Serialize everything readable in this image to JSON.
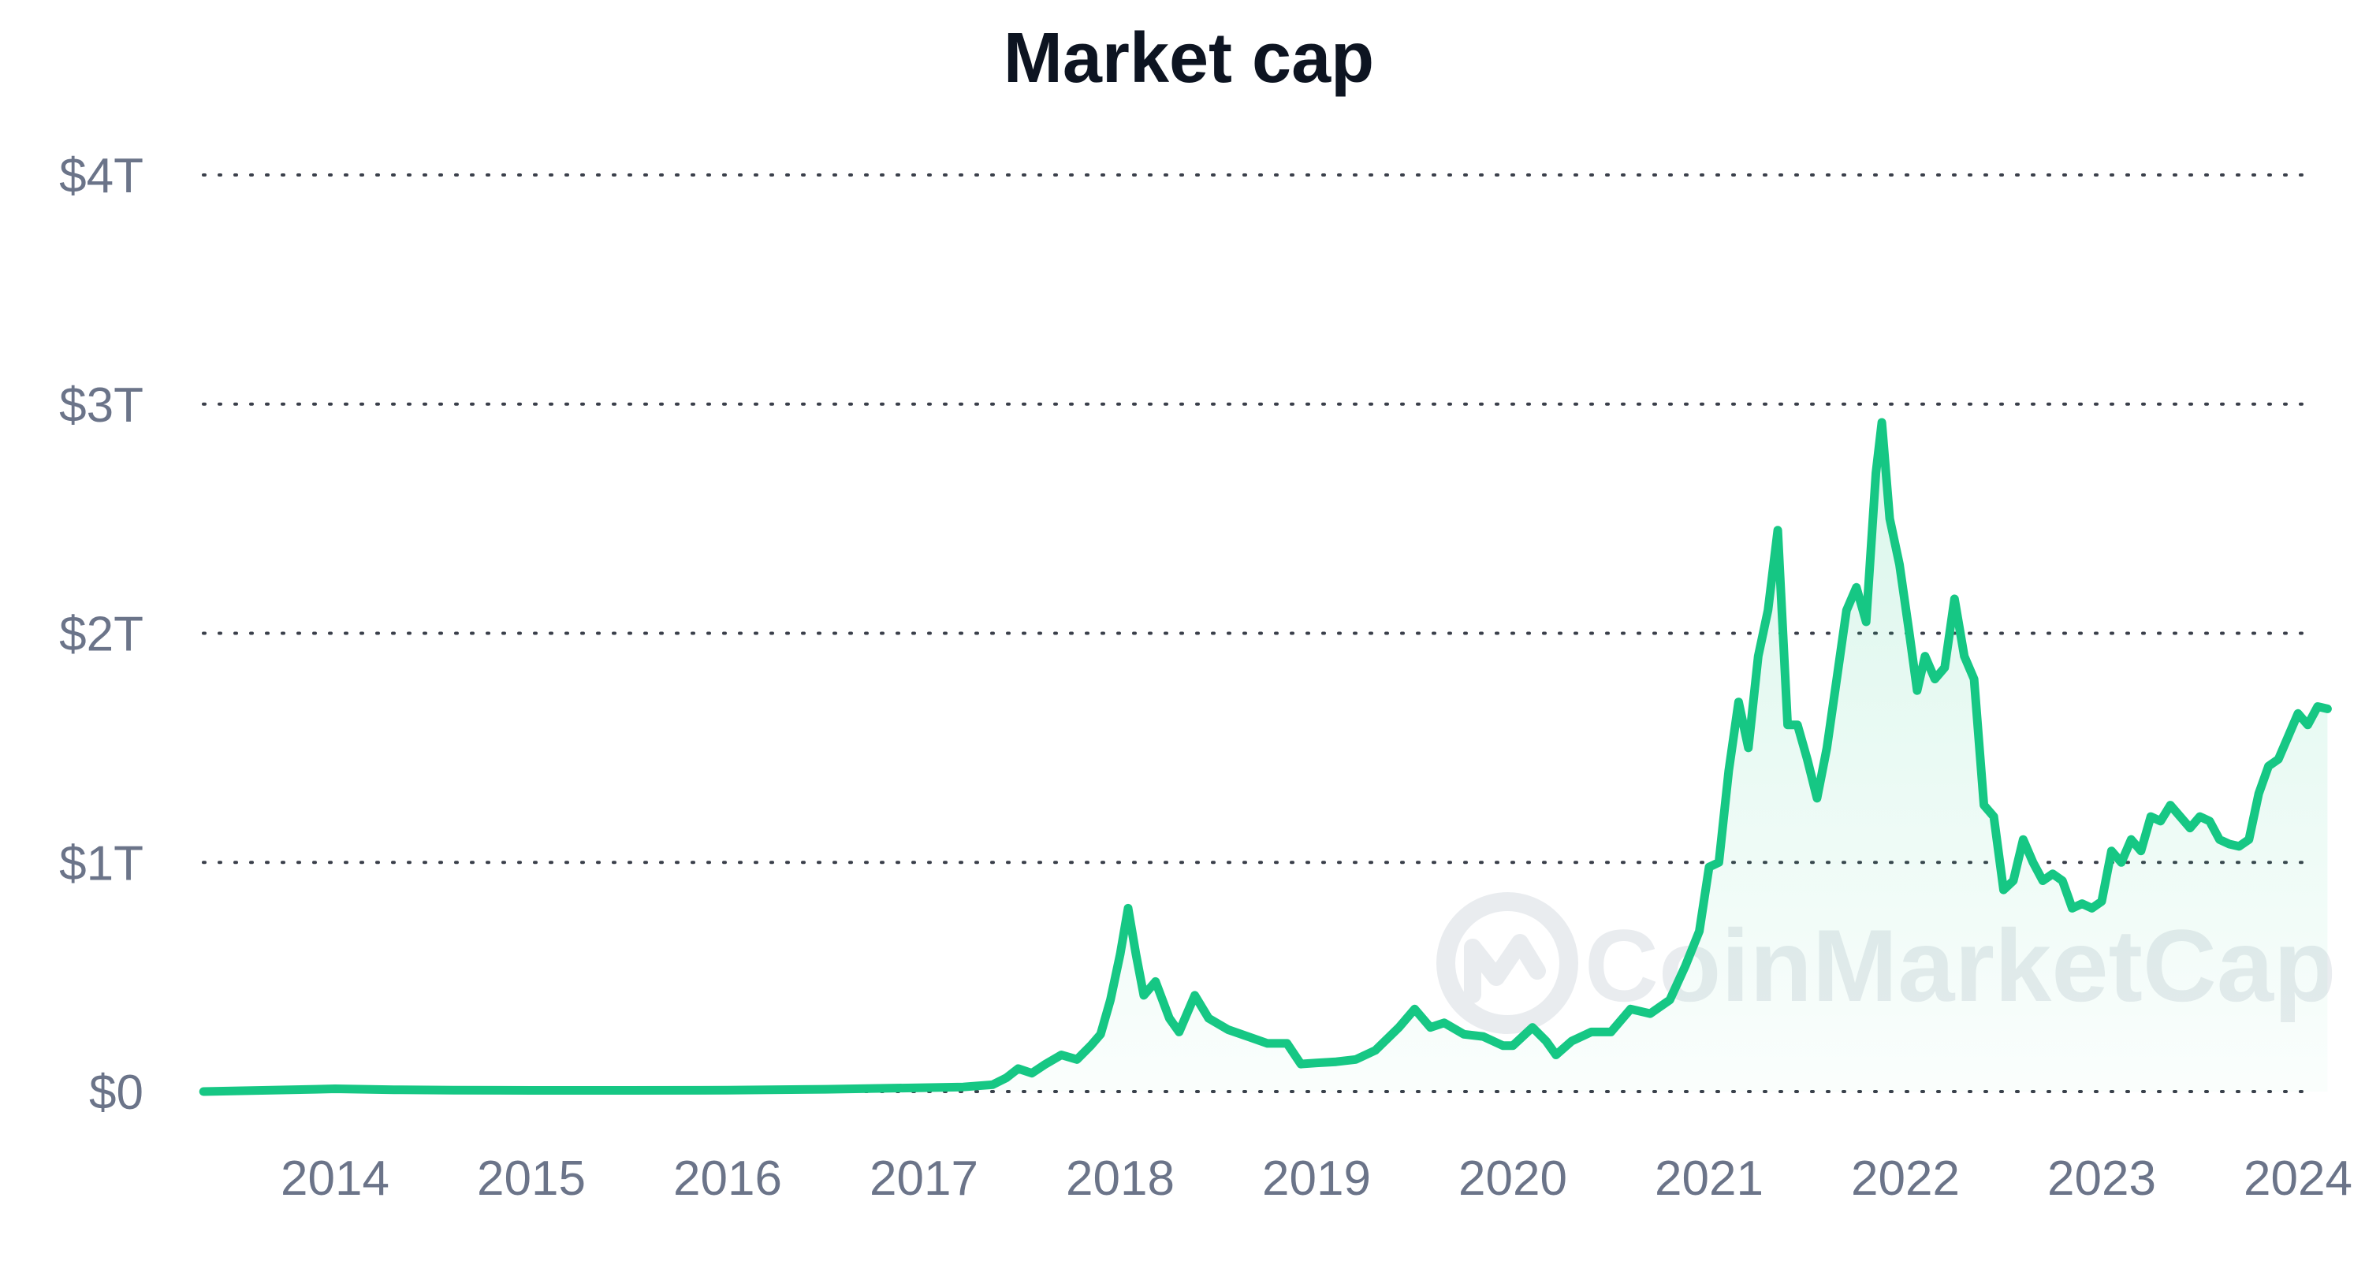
{
  "chart_data": {
    "type": "area",
    "title": "Market cap",
    "xlabel": "",
    "ylabel": "",
    "x_range": [
      2013.33,
      2024.15
    ],
    "ylim": [
      0,
      4
    ],
    "y_unit": "trillion USD",
    "y_ticks": [
      0,
      1,
      2,
      3,
      4
    ],
    "y_tick_labels": [
      "$0",
      "$1T",
      "$2T",
      "$3T",
      "$4T"
    ],
    "x_ticks": [
      2014,
      2015,
      2016,
      2017,
      2018,
      2019,
      2020,
      2021,
      2022,
      2023,
      2024
    ],
    "x_tick_labels": [
      "2014",
      "2015",
      "2016",
      "2017",
      "2018",
      "2019",
      "2020",
      "2021",
      "2022",
      "2023",
      "2024"
    ],
    "grid": "horizontal dotted",
    "line_color": "#16c784",
    "watermark": "CoinMarketCap",
    "series": [
      {
        "points": [
          [
            2013.33,
            0.0
          ],
          [
            2013.9,
            0.01
          ],
          [
            2014.0,
            0.012
          ],
          [
            2014.3,
            0.008
          ],
          [
            2014.6,
            0.006
          ],
          [
            2015.0,
            0.005
          ],
          [
            2015.5,
            0.005
          ],
          [
            2016.0,
            0.006
          ],
          [
            2016.5,
            0.01
          ],
          [
            2017.0,
            0.017
          ],
          [
            2017.2,
            0.02
          ],
          [
            2017.35,
            0.03
          ],
          [
            2017.42,
            0.06
          ],
          [
            2017.48,
            0.1
          ],
          [
            2017.55,
            0.08
          ],
          [
            2017.62,
            0.12
          ],
          [
            2017.7,
            0.16
          ],
          [
            2017.78,
            0.14
          ],
          [
            2017.85,
            0.2
          ],
          [
            2017.9,
            0.25
          ],
          [
            2017.95,
            0.4
          ],
          [
            2018.0,
            0.6
          ],
          [
            2018.04,
            0.8
          ],
          [
            2018.08,
            0.6
          ],
          [
            2018.12,
            0.42
          ],
          [
            2018.18,
            0.48
          ],
          [
            2018.25,
            0.32
          ],
          [
            2018.3,
            0.26
          ],
          [
            2018.38,
            0.42
          ],
          [
            2018.45,
            0.32
          ],
          [
            2018.55,
            0.27
          ],
          [
            2018.65,
            0.24
          ],
          [
            2018.75,
            0.21
          ],
          [
            2018.85,
            0.21
          ],
          [
            2018.92,
            0.12
          ],
          [
            2019.0,
            0.125
          ],
          [
            2019.1,
            0.13
          ],
          [
            2019.2,
            0.14
          ],
          [
            2019.3,
            0.18
          ],
          [
            2019.42,
            0.28
          ],
          [
            2019.5,
            0.36
          ],
          [
            2019.58,
            0.28
          ],
          [
            2019.65,
            0.3
          ],
          [
            2019.75,
            0.25
          ],
          [
            2019.85,
            0.24
          ],
          [
            2019.95,
            0.2
          ],
          [
            2020.0,
            0.2
          ],
          [
            2020.1,
            0.28
          ],
          [
            2020.17,
            0.22
          ],
          [
            2020.22,
            0.16
          ],
          [
            2020.3,
            0.22
          ],
          [
            2020.4,
            0.26
          ],
          [
            2020.5,
            0.26
          ],
          [
            2020.6,
            0.36
          ],
          [
            2020.7,
            0.34
          ],
          [
            2020.8,
            0.4
          ],
          [
            2020.88,
            0.55
          ],
          [
            2020.95,
            0.7
          ],
          [
            2021.0,
            0.98
          ],
          [
            2021.05,
            1.0
          ],
          [
            2021.1,
            1.4
          ],
          [
            2021.15,
            1.7
          ],
          [
            2021.2,
            1.5
          ],
          [
            2021.25,
            1.9
          ],
          [
            2021.3,
            2.1
          ],
          [
            2021.35,
            2.45
          ],
          [
            2021.4,
            1.6
          ],
          [
            2021.45,
            1.6
          ],
          [
            2021.5,
            1.45
          ],
          [
            2021.55,
            1.28
          ],
          [
            2021.6,
            1.5
          ],
          [
            2021.65,
            1.8
          ],
          [
            2021.7,
            2.1
          ],
          [
            2021.75,
            2.2
          ],
          [
            2021.8,
            2.05
          ],
          [
            2021.85,
            2.7
          ],
          [
            2021.88,
            2.92
          ],
          [
            2021.92,
            2.5
          ],
          [
            2021.97,
            2.3
          ],
          [
            2022.02,
            2.0
          ],
          [
            2022.06,
            1.75
          ],
          [
            2022.1,
            1.9
          ],
          [
            2022.15,
            1.8
          ],
          [
            2022.2,
            1.85
          ],
          [
            2022.25,
            2.15
          ],
          [
            2022.3,
            1.9
          ],
          [
            2022.35,
            1.8
          ],
          [
            2022.4,
            1.25
          ],
          [
            2022.45,
            1.2
          ],
          [
            2022.5,
            0.88
          ],
          [
            2022.55,
            0.92
          ],
          [
            2022.6,
            1.1
          ],
          [
            2022.65,
            1.0
          ],
          [
            2022.7,
            0.92
          ],
          [
            2022.75,
            0.95
          ],
          [
            2022.8,
            0.92
          ],
          [
            2022.85,
            0.8
          ],
          [
            2022.9,
            0.82
          ],
          [
            2022.95,
            0.8
          ],
          [
            2023.0,
            0.83
          ],
          [
            2023.05,
            1.05
          ],
          [
            2023.1,
            1.0
          ],
          [
            2023.15,
            1.1
          ],
          [
            2023.2,
            1.05
          ],
          [
            2023.25,
            1.2
          ],
          [
            2023.3,
            1.18
          ],
          [
            2023.35,
            1.25
          ],
          [
            2023.4,
            1.2
          ],
          [
            2023.45,
            1.15
          ],
          [
            2023.5,
            1.2
          ],
          [
            2023.55,
            1.18
          ],
          [
            2023.6,
            1.1
          ],
          [
            2023.65,
            1.08
          ],
          [
            2023.7,
            1.07
          ],
          [
            2023.75,
            1.1
          ],
          [
            2023.8,
            1.3
          ],
          [
            2023.85,
            1.42
          ],
          [
            2023.9,
            1.45
          ],
          [
            2023.95,
            1.55
          ],
          [
            2024.0,
            1.65
          ],
          [
            2024.05,
            1.6
          ],
          [
            2024.1,
            1.68
          ],
          [
            2024.15,
            1.67
          ]
        ]
      }
    ]
  }
}
